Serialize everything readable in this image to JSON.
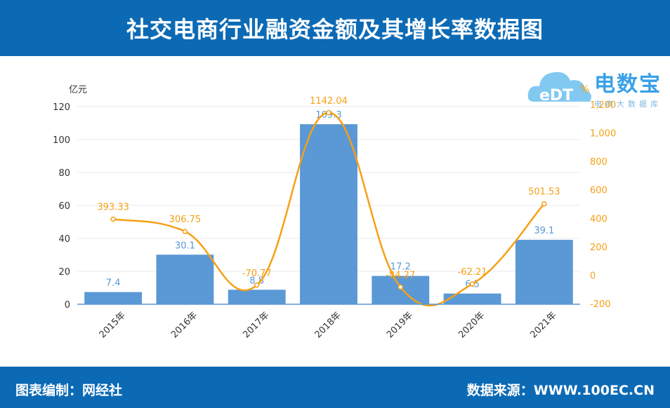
{
  "header": {
    "title": "社交电商行业融资金额及其增长率数据图"
  },
  "footer": {
    "source_left": "图表编制：网经社",
    "source_right": "数据来源：WWW.100EC.CN"
  },
  "logo": {
    "brand": "电数宝",
    "sub": "电商大数据库",
    "mark": "eDT"
  },
  "colors": {
    "bar": "#5a98d6",
    "line": "#f6a015",
    "header_bg": "#0c6ab5",
    "axis": "#333333",
    "grid": "#e8e8e8"
  },
  "chart_data": {
    "type": "bar",
    "categories": [
      "2015年",
      "2016年",
      "2017年",
      "2018年",
      "2019年",
      "2020年",
      "2021年"
    ],
    "series": [
      {
        "type": "bar",
        "axis": "left",
        "values": [
          7.4,
          30.1,
          8.8,
          109.3,
          17.2,
          6.5,
          39.1
        ]
      },
      {
        "type": "line",
        "axis": "right",
        "values": [
          393.33,
          306.75,
          -70.77,
          1142.04,
          -84.27,
          -62.21,
          501.53
        ]
      }
    ],
    "y_left": {
      "unit": "亿元",
      "ylim": [
        0,
        120
      ],
      "ticks": [
        0,
        20,
        40,
        60,
        80,
        100,
        120
      ]
    },
    "y_right": {
      "unit": "%",
      "ylim": [
        -200,
        1200
      ],
      "ticks": [
        -200,
        0,
        200,
        400,
        600,
        800,
        "1,000",
        "1,200"
      ]
    },
    "grid": true
  }
}
